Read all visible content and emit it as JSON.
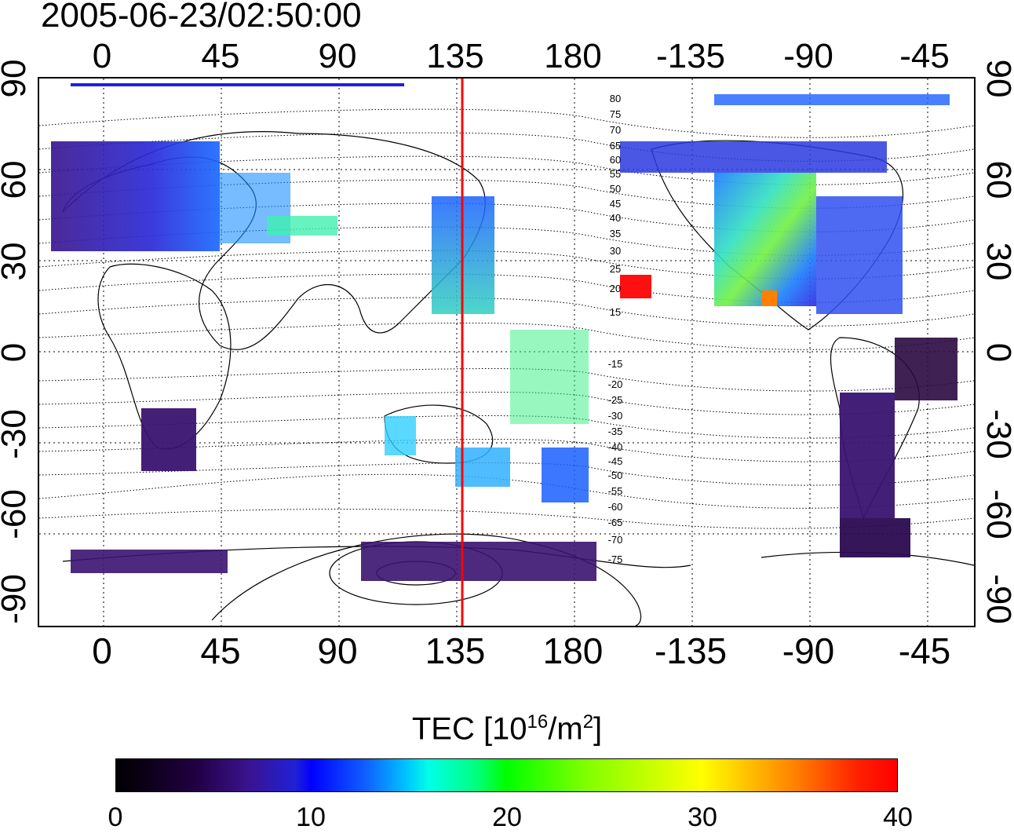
{
  "timestamp": "2005-06-23/02:50:00",
  "lon_labels": [
    "0",
    "45",
    "90",
    "135",
    "180",
    "-135",
    "-90",
    "-45"
  ],
  "lat_labels": [
    "90",
    "60",
    "30",
    "0",
    "-30",
    "-60",
    "-90"
  ],
  "contour_labels_north": [
    "80",
    "75",
    "70",
    "65",
    "60",
    "55",
    "50",
    "45",
    "40",
    "35",
    "30",
    "25",
    "20",
    "15"
  ],
  "contour_labels_south": [
    "-15",
    "-20",
    "-25",
    "-30",
    "-35",
    "-40",
    "-45",
    "-50",
    "-55",
    "-60",
    "-65",
    "-70",
    "-75"
  ],
  "colorbar": {
    "title": "TEC  [10",
    "title_exp": "16",
    "title_mid": "/m",
    "title_exp2": "2",
    "title_end": "]",
    "ticks": [
      "0",
      "10",
      "20",
      "30",
      "40"
    ],
    "min": 0,
    "max": 40
  },
  "terminator_longitude": 138,
  "colors": {
    "terminator": "#ff0000",
    "grid": "#000000"
  }
}
